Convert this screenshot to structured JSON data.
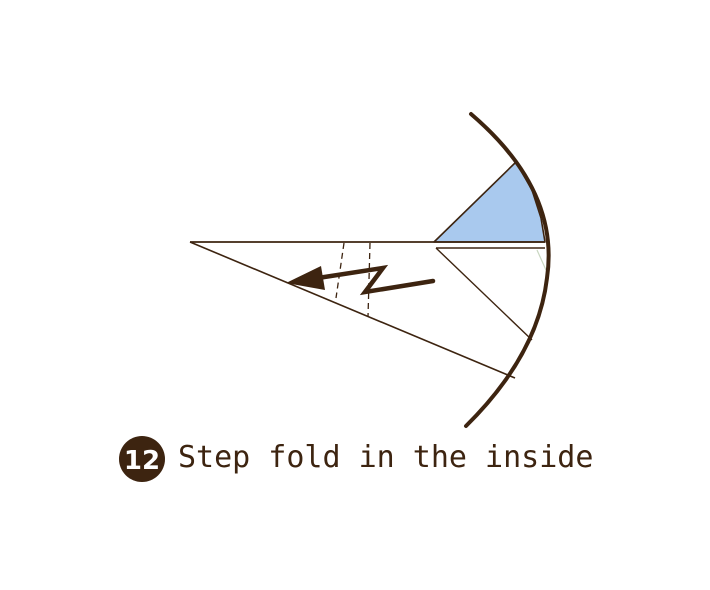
{
  "step": {
    "number": "12",
    "caption": "Step fold in the inside"
  },
  "colors": {
    "outline": "#3d2410",
    "flap_fill": "#a9c9ee",
    "paper_fill": "#ffffff",
    "crease": "#c9d6c0"
  },
  "icons": [
    "step-fold-arrow-icon"
  ]
}
